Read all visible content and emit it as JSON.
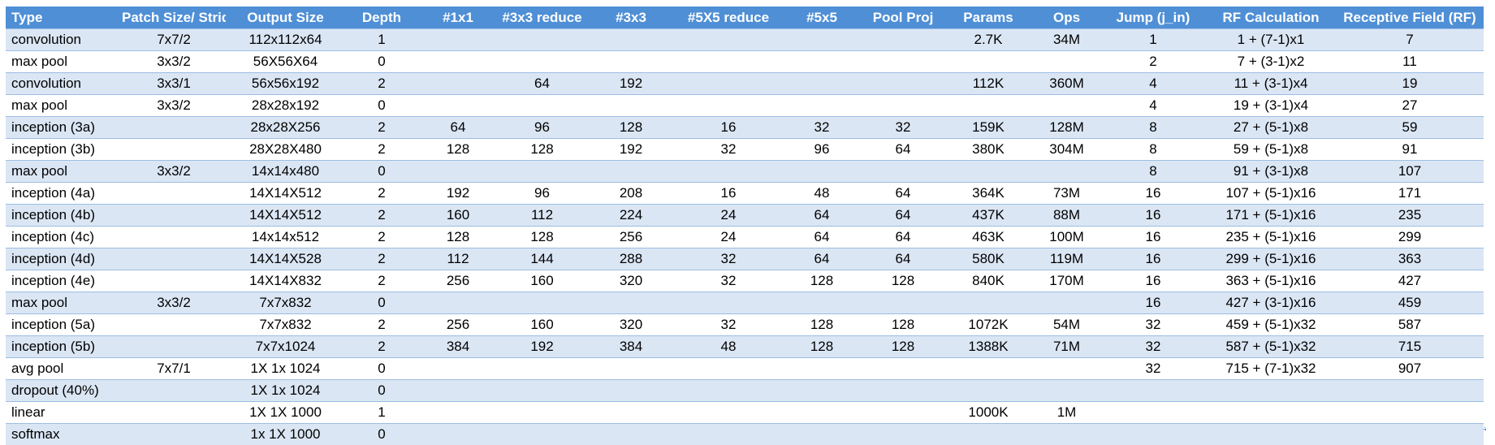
{
  "colors": {
    "header_bg": "#4f8fd6",
    "band": "#dbe6f4",
    "row_border": "#9dbde3"
  },
  "header": [
    "Type",
    "Patch Size/ Stride",
    "Output Size",
    "Depth",
    "#1x1",
    "#3x3 reduce",
    "#3x3",
    "#5X5 reduce",
    "#5x5",
    "Pool Proj",
    "Params",
    "Ops",
    "Jump (j_in)",
    "RF Calculation",
    "Receptive Field (RF)"
  ],
  "rows": [
    [
      "convolution",
      "7x7/2",
      "112x112x64",
      "1",
      "",
      "",
      "",
      "",
      "",
      "",
      "2.7K",
      "34M",
      "1",
      "1 + (7-1)x1",
      "7"
    ],
    [
      "max pool",
      "3x3/2",
      "56X56X64",
      "0",
      "",
      "",
      "",
      "",
      "",
      "",
      "",
      "",
      "2",
      "7 + (3-1)x2",
      "11"
    ],
    [
      "convolution",
      "3x3/1",
      "56x56x192",
      "2",
      "",
      "64",
      "192",
      "",
      "",
      "",
      "112K",
      "360M",
      "4",
      "11 + (3-1)x4",
      "19"
    ],
    [
      "max pool",
      "3x3/2",
      "28x28x192",
      "0",
      "",
      "",
      "",
      "",
      "",
      "",
      "",
      "",
      "4",
      "19 + (3-1)x4",
      "27"
    ],
    [
      "inception (3a)",
      "",
      "28x28X256",
      "2",
      "64",
      "96",
      "128",
      "16",
      "32",
      "32",
      "159K",
      "128M",
      "8",
      "27 + (5-1)x8",
      "59"
    ],
    [
      "inception (3b)",
      "",
      "28X28X480",
      "2",
      "128",
      "128",
      "192",
      "32",
      "96",
      "64",
      "380K",
      "304M",
      "8",
      "59 + (5-1)x8",
      "91"
    ],
    [
      "max pool",
      "3x3/2",
      "14x14x480",
      "0",
      "",
      "",
      "",
      "",
      "",
      "",
      "",
      "",
      "8",
      "91 + (3-1)x8",
      "107"
    ],
    [
      "inception (4a)",
      "",
      "14X14X512",
      "2",
      "192",
      "96",
      "208",
      "16",
      "48",
      "64",
      "364K",
      "73M",
      "16",
      "107 + (5-1)x16",
      "171"
    ],
    [
      "inception (4b)",
      "",
      "14X14X512",
      "2",
      "160",
      "112",
      "224",
      "24",
      "64",
      "64",
      "437K",
      "88M",
      "16",
      "171 + (5-1)x16",
      "235"
    ],
    [
      "inception (4c)",
      "",
      "14x14x512",
      "2",
      "128",
      "128",
      "256",
      "24",
      "64",
      "64",
      "463K",
      "100M",
      "16",
      "235 + (5-1)x16",
      "299"
    ],
    [
      "inception (4d)",
      "",
      "14X14X528",
      "2",
      "112",
      "144",
      "288",
      "32",
      "64",
      "64",
      "580K",
      "119M",
      "16",
      "299 + (5-1)x16",
      "363"
    ],
    [
      "inception (4e)",
      "",
      "14X14X832",
      "2",
      "256",
      "160",
      "320",
      "32",
      "128",
      "128",
      "840K",
      "170M",
      "16",
      "363 + (5-1)x16",
      "427"
    ],
    [
      "max pool",
      "3x3/2",
      "7x7x832",
      "0",
      "",
      "",
      "",
      "",
      "",
      "",
      "",
      "",
      "16",
      "427 + (3-1)x16",
      "459"
    ],
    [
      "inception (5a)",
      "",
      "7x7x832",
      "2",
      "256",
      "160",
      "320",
      "32",
      "128",
      "128",
      "1072K",
      "54M",
      "32",
      "459 + (5-1)x32",
      "587"
    ],
    [
      "inception (5b)",
      "",
      "7x7x1024",
      "2",
      "384",
      "192",
      "384",
      "48",
      "128",
      "128",
      "1388K",
      "71M",
      "32",
      "587 + (5-1)x32",
      "715"
    ],
    [
      "avg pool",
      "7x7/1",
      "1X 1x 1024",
      "0",
      "",
      "",
      "",
      "",
      "",
      "",
      "",
      "",
      "32",
      "715 + (7-1)x32",
      "907"
    ],
    [
      "dropout (40%)",
      "",
      "1X 1x 1024",
      "0",
      "",
      "",
      "",
      "",
      "",
      "",
      "",
      "",
      "",
      "",
      ""
    ],
    [
      "linear",
      "",
      "1X 1X 1000",
      "1",
      "",
      "",
      "",
      "",
      "",
      "",
      "1000K",
      "1M",
      "",
      "",
      ""
    ],
    [
      "softmax",
      "",
      "1x 1X 1000",
      "0",
      "",
      "",
      "",
      "",
      "",
      "",
      "",
      "",
      "",
      "",
      ""
    ]
  ]
}
